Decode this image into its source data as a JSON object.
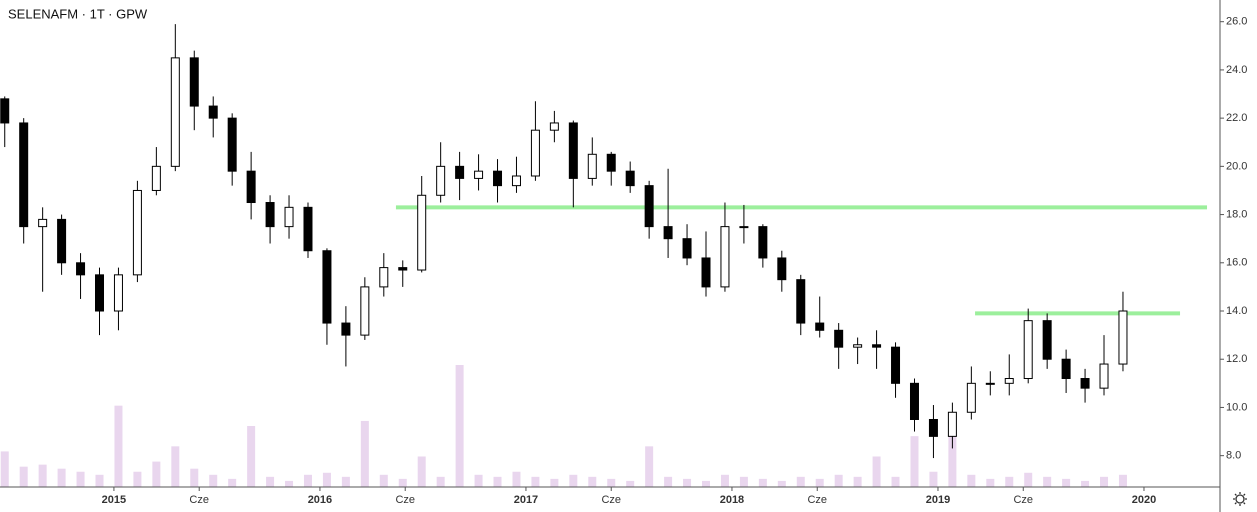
{
  "chart_data": {
    "type": "candlestick",
    "title": "SELENAFM · 1T · GPW",
    "x": [
      2014.47,
      2014.562,
      2014.654,
      2014.746,
      2014.838,
      2014.93,
      2015.022,
      2015.114,
      2015.206,
      2015.298,
      2015.39,
      2015.482,
      2015.574,
      2015.666,
      2015.758,
      2015.85,
      2015.942,
      2016.034,
      2016.126,
      2016.218,
      2016.31,
      2016.402,
      2016.494,
      2016.586,
      2016.678,
      2016.77,
      2016.862,
      2016.954,
      2017.046,
      2017.138,
      2017.23,
      2017.322,
      2017.414,
      2017.506,
      2017.598,
      2017.69,
      2017.782,
      2017.874,
      2017.966,
      2018.058,
      2018.15,
      2018.242,
      2018.334,
      2018.426,
      2018.518,
      2018.61,
      2018.702,
      2018.794,
      2018.886,
      2018.978,
      2019.07,
      2019.162,
      2019.254,
      2019.346,
      2019.438,
      2019.53,
      2019.622,
      2019.714,
      2019.806,
      2019.898
    ],
    "open": [
      22.8,
      21.8,
      17.5,
      17.8,
      16.0,
      15.5,
      14.0,
      15.5,
      19.0,
      20.0,
      24.5,
      22.5,
      22.0,
      19.8,
      18.5,
      17.5,
      18.3,
      16.5,
      13.5,
      13.0,
      15.0,
      15.8,
      15.7,
      18.8,
      20.0,
      19.5,
      19.8,
      19.2,
      19.6,
      21.5,
      21.8,
      19.5,
      20.5,
      19.8,
      19.2,
      17.5,
      17.0,
      16.2,
      15.0,
      17.5,
      17.5,
      16.2,
      15.3,
      13.5,
      13.2,
      12.5,
      12.6,
      12.5,
      11.0,
      9.5,
      8.8,
      9.8,
      11.0,
      11.0,
      11.2,
      13.6,
      12.0,
      11.2,
      10.8,
      11.8
    ],
    "high": [
      22.9,
      22.0,
      18.3,
      18.0,
      16.4,
      15.8,
      15.8,
      19.4,
      20.8,
      25.9,
      24.8,
      22.9,
      22.2,
      20.6,
      18.8,
      18.8,
      18.5,
      16.6,
      14.2,
      15.4,
      16.4,
      16.1,
      19.6,
      21.0,
      20.6,
      20.5,
      20.3,
      20.4,
      22.7,
      22.3,
      21.9,
      21.2,
      20.6,
      20.2,
      19.4,
      19.9,
      17.6,
      17.3,
      18.5,
      18.4,
      17.6,
      16.5,
      15.5,
      14.6,
      13.5,
      12.9,
      13.2,
      12.7,
      11.2,
      10.1,
      10.2,
      11.7,
      11.5,
      12.2,
      14.1,
      13.9,
      12.4,
      11.6,
      13.0,
      14.8
    ],
    "low": [
      20.8,
      16.8,
      14.8,
      15.5,
      14.5,
      13.0,
      13.2,
      15.2,
      18.8,
      19.8,
      21.5,
      21.2,
      19.2,
      17.8,
      16.8,
      17.0,
      16.2,
      12.6,
      11.7,
      12.8,
      14.6,
      15.0,
      15.6,
      18.5,
      18.6,
      19.0,
      18.5,
      18.9,
      19.4,
      21.0,
      18.3,
      19.2,
      19.2,
      18.9,
      17.0,
      16.2,
      15.9,
      14.6,
      14.8,
      16.8,
      15.8,
      14.8,
      13.0,
      12.9,
      11.6,
      11.8,
      11.6,
      10.4,
      9.0,
      7.9,
      8.3,
      9.5,
      10.5,
      10.5,
      11.0,
      11.6,
      10.6,
      10.2,
      10.5,
      11.5
    ],
    "close": [
      21.8,
      17.5,
      17.8,
      16.0,
      15.5,
      14.0,
      15.5,
      19.0,
      20.0,
      24.5,
      22.5,
      22.0,
      19.8,
      18.5,
      17.5,
      18.3,
      16.5,
      13.5,
      13.0,
      15.0,
      15.8,
      15.7,
      18.8,
      20.0,
      19.5,
      19.8,
      19.2,
      19.6,
      21.5,
      21.8,
      19.5,
      20.5,
      19.8,
      19.2,
      17.5,
      17.0,
      16.2,
      15.0,
      17.5,
      17.5,
      16.2,
      15.3,
      13.5,
      13.2,
      12.5,
      12.6,
      12.5,
      11.0,
      9.5,
      8.8,
      9.8,
      11.0,
      11.0,
      11.2,
      13.6,
      12.0,
      11.2,
      10.8,
      11.8,
      14.0
    ],
    "volume": [
      35,
      20,
      22,
      18,
      15,
      12,
      80,
      15,
      25,
      40,
      18,
      12,
      8,
      60,
      10,
      6,
      12,
      14,
      10,
      65,
      12,
      8,
      30,
      10,
      120,
      12,
      10,
      15,
      10,
      8,
      12,
      10,
      8,
      6,
      40,
      10,
      8,
      6,
      12,
      10,
      8,
      6,
      10,
      8,
      12,
      10,
      30,
      10,
      50,
      15,
      55,
      12,
      8,
      10,
      14,
      10,
      8,
      6,
      10,
      12
    ],
    "up_color": "#ffffff",
    "down_color": "#000000",
    "edge_color": "#000000",
    "volume_color": "#e9d6ee",
    "levels": [
      {
        "value": 18.3,
        "x": [
          2016.369,
          2020.306
        ],
        "color": "#9cef9c"
      },
      {
        "value": 13.9,
        "x": [
          2019.18,
          2020.175
        ],
        "color": "#9cef9c"
      }
    ],
    "xlim": [
      2014.447,
      2020.369
    ],
    "ylim": [
      6.7,
      26.9
    ],
    "xticks": [
      2015,
      {
        "value": 2015.414,
        "label": "Cze"
      },
      2016,
      {
        "value": 2016.414,
        "label": "Cze"
      },
      2017,
      {
        "value": 2017.414,
        "label": "Cze"
      },
      2018,
      {
        "value": 2018.414,
        "label": "Cze"
      },
      2019,
      {
        "value": 2019.414,
        "label": "Cze"
      },
      2020
    ],
    "yticks": [
      {
        "value": 8,
        "label": "8.0"
      },
      {
        "value": 10,
        "label": "10.0"
      },
      {
        "value": 12,
        "label": "12.0"
      },
      {
        "value": 14,
        "label": "14.0"
      },
      {
        "value": 16,
        "label": "16.0"
      },
      {
        "value": 18,
        "label": "18.0"
      },
      {
        "value": 20,
        "label": "20.0"
      },
      {
        "value": 22,
        "label": "22.0"
      },
      {
        "value": 24,
        "label": "24.0"
      },
      {
        "value": 26,
        "label": "26.0"
      }
    ]
  }
}
